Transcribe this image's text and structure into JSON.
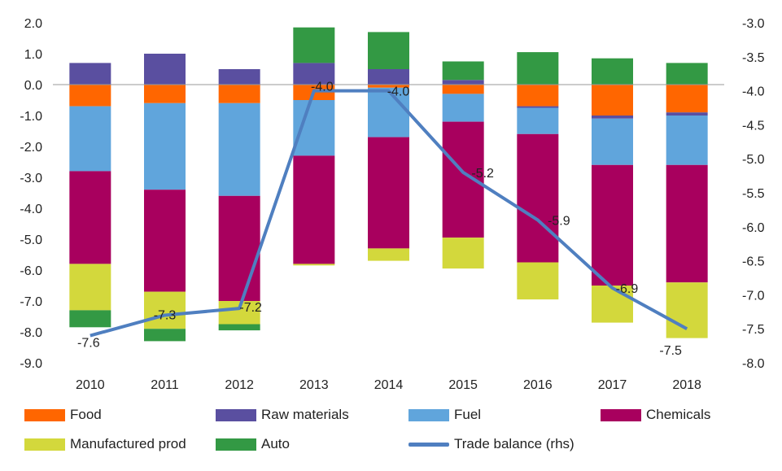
{
  "chart_data": {
    "type": "bar",
    "stacked": true,
    "categories": [
      "2010",
      "2011",
      "2012",
      "2013",
      "2014",
      "2015",
      "2016",
      "2017",
      "2018"
    ],
    "left_axis": {
      "ylim": [
        -9.0,
        2.0
      ],
      "ticks": [
        "2.0",
        "1.0",
        "0.0",
        "-1.0",
        "-2.0",
        "-3.0",
        "-4.0",
        "-5.0",
        "-6.0",
        "-7.0",
        "-8.0",
        "-9.0"
      ]
    },
    "right_axis": {
      "ylim": [
        -8.0,
        -3.0
      ],
      "ticks": [
        "-3.0",
        "-3.5",
        "-4.0",
        "-4.5",
        "-5.0",
        "-5.5",
        "-6.0",
        "-6.5",
        "-7.0",
        "-7.5",
        "-8.0"
      ]
    },
    "series": [
      {
        "name": "Food",
        "color": "#ff6600",
        "values": [
          -0.7,
          -0.6,
          -0.6,
          -0.5,
          -0.1,
          -0.3,
          -0.7,
          -1.0,
          -0.9
        ]
      },
      {
        "name": "Raw materials",
        "color": "#5a4fa0",
        "values": [
          0.7,
          1.0,
          0.5,
          0.7,
          0.5,
          0.15,
          -0.05,
          -0.1,
          -0.1
        ]
      },
      {
        "name": "Fuel",
        "color": "#60a5dc",
        "values": [
          -2.1,
          -2.8,
          -3.0,
          -1.8,
          -1.6,
          -0.9,
          -0.85,
          -1.5,
          -1.6
        ]
      },
      {
        "name": "Chemicals",
        "color": "#a8005e",
        "values": [
          -3.0,
          -3.3,
          -3.4,
          -3.5,
          -3.6,
          -3.75,
          -4.15,
          -3.9,
          -3.8
        ]
      },
      {
        "name": "Manufactured prod",
        "color": "#d3d83c",
        "values": [
          -1.5,
          -1.2,
          -0.75,
          -0.05,
          -0.4,
          -1.0,
          -1.2,
          -1.2,
          -1.8
        ]
      },
      {
        "name": "Auto",
        "color": "#339944",
        "values": [
          -0.55,
          -0.4,
          -0.2,
          1.15,
          1.2,
          0.6,
          1.05,
          0.85,
          0.7
        ]
      }
    ],
    "line": {
      "name": "Trade balance (rhs)",
      "color": "#4f7fc0",
      "values": [
        -7.6,
        -7.3,
        -7.2,
        -4.0,
        -4.0,
        -5.2,
        -5.9,
        -6.9,
        -7.5
      ],
      "labels": [
        "-7.6",
        "-7.3",
        "-7.2",
        "-4.0",
        "-4.0",
        "-5.2",
        "-5.9",
        "-6.9",
        "-7.5"
      ]
    },
    "legend": "bottom"
  }
}
